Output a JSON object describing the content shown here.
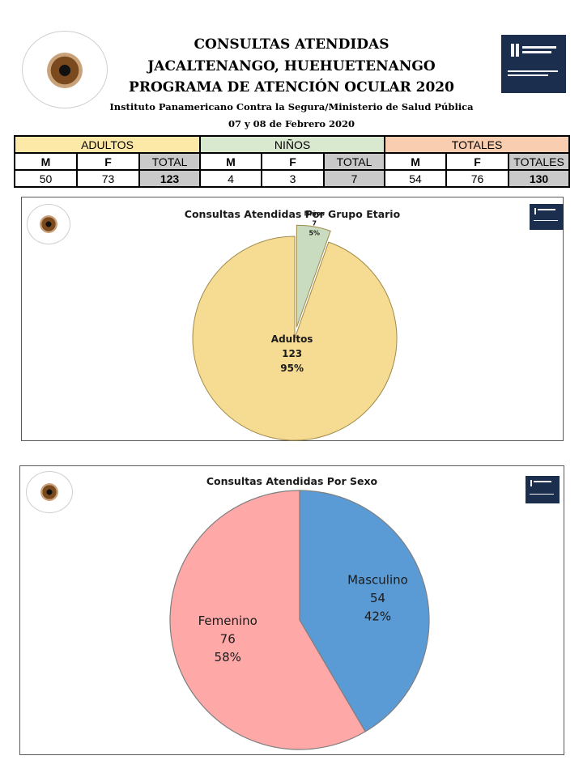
{
  "header": {
    "title_line1": "CONSULTAS ATENDIDAS",
    "title_line2": "JACALTENANGO, HUEHUETENANGO",
    "title_line3": "PROGRAMA DE ATENCIÓN OCULAR 2020",
    "subtitle": "Instituto Panamericano Contra la Segura/Ministerio de Salud Pública",
    "date": "07 y 08 de Febrero 2020"
  },
  "table": {
    "groups": [
      "ADULTOS",
      "NIÑOS",
      "TOTALES"
    ],
    "columns": [
      "M",
      "F",
      "TOTAL",
      "M",
      "F",
      "TOTAL",
      "M",
      "F",
      "TOTALES"
    ],
    "values": [
      "50",
      "73",
      "123",
      "4",
      "3",
      "7",
      "54",
      "76",
      "130"
    ],
    "colors": {
      "adultos": "#fde9a7",
      "ninos": "#d8e9cf",
      "totales": "#f8cdb0",
      "total_cells": "#c9c9c9"
    }
  },
  "chart_data": [
    {
      "type": "pie",
      "title": "Consultas Atendidas Por Grupo Etario",
      "slices": [
        {
          "label": "Niños",
          "value": 7,
          "percent": "5%",
          "color": "#c9dcc0"
        },
        {
          "label": "Adultos",
          "value": 123,
          "percent": "95%",
          "color": "#f6dc92"
        }
      ]
    },
    {
      "type": "pie",
      "title": "Consultas Atendidas Por Sexo",
      "slices": [
        {
          "label": "Masculino",
          "value": 54,
          "percent": "42%",
          "color": "#5b9bd5"
        },
        {
          "label": "Femenino",
          "value": 76,
          "percent": "58%",
          "color": "#ffa8a8"
        }
      ]
    }
  ]
}
